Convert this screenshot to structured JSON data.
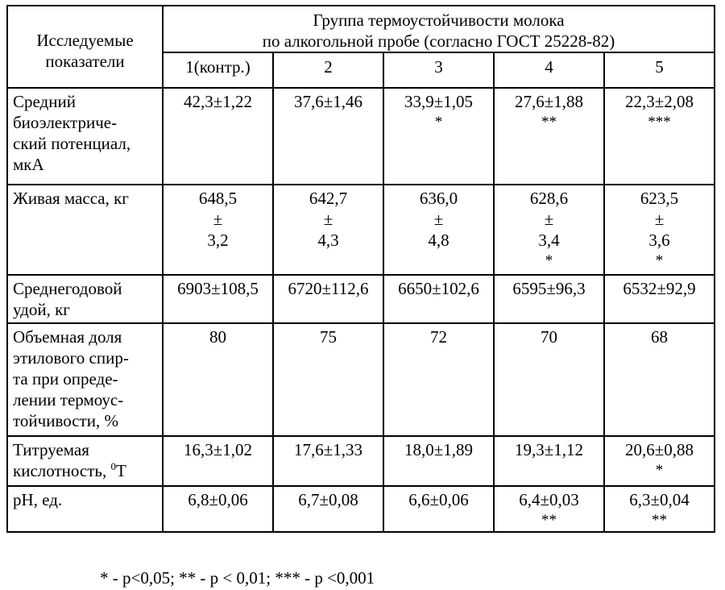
{
  "header": {
    "row_label": "Исследуемые показатели",
    "row_label_line1": "Исследуемые",
    "row_label_line2": "показатели",
    "group_title_line1": "Группа термоустойчивости молока",
    "group_title_line2": "по алкогольной пробе (согласно ГОСТ 25228-82)",
    "groups": [
      "1(контр.)",
      "2",
      "3",
      "4",
      "5"
    ]
  },
  "rows": [
    {
      "label_lines": [
        "Средний",
        "биоэлектриче-",
        "ский потенциал,",
        "мкА"
      ],
      "cells": [
        {
          "value": "42,3±1,22",
          "mark": ""
        },
        {
          "value": "37,6±1,46",
          "mark": ""
        },
        {
          "value": "33,9±1,05",
          "mark": "*"
        },
        {
          "value": "27,6±1,88",
          "mark": "**"
        },
        {
          "value": "22,3±2,08",
          "mark": "***"
        }
      ]
    },
    {
      "label_lines": [
        "Живая масса, кг"
      ],
      "cells": [
        {
          "value": "648,5",
          "pm": "±",
          "err": "3,2",
          "mark": ""
        },
        {
          "value": "642,7",
          "pm": "±",
          "err": "4,3",
          "mark": ""
        },
        {
          "value": "636,0",
          "pm": "±",
          "err": "4,8",
          "mark": ""
        },
        {
          "value": "628,6",
          "pm": "±",
          "err": "3,4",
          "mark": "*"
        },
        {
          "value": "623,5",
          "pm": "±",
          "err": "3,6",
          "mark": "*"
        }
      ]
    },
    {
      "label_lines": [
        "Среднегодовой",
        "удой, кг"
      ],
      "cells": [
        {
          "value": "6903±108,5",
          "mark": ""
        },
        {
          "value": "6720±112,6",
          "mark": ""
        },
        {
          "value": "6650±102,6",
          "mark": ""
        },
        {
          "value": "6595±96,3",
          "mark": ""
        },
        {
          "value": "6532±92,9",
          "mark": ""
        }
      ]
    },
    {
      "label_lines": [
        "Объемная доля",
        "этилового спир-",
        "та при опреде-",
        "лении термоус-",
        "тойчивости, %"
      ],
      "cells": [
        {
          "value": "80",
          "mark": ""
        },
        {
          "value": "75",
          "mark": ""
        },
        {
          "value": "72",
          "mark": ""
        },
        {
          "value": "70",
          "mark": ""
        },
        {
          "value": "68",
          "mark": ""
        }
      ]
    },
    {
      "label_lines": [
        "Титруемая",
        "кислотность, "
      ],
      "label_sup": "0",
      "label_tail": "Т",
      "cells": [
        {
          "value": "16,3±1,02",
          "mark": ""
        },
        {
          "value": "17,6±1,33",
          "mark": ""
        },
        {
          "value": "18,0±1,89",
          "mark": ""
        },
        {
          "value": "19,3±1,12",
          "mark": ""
        },
        {
          "value": "20,6±0,88",
          "mark": "*"
        }
      ]
    },
    {
      "label_lines": [
        "рН, ед."
      ],
      "cells": [
        {
          "value": "6,8±0,06",
          "mark": ""
        },
        {
          "value": "6,7±0,08",
          "mark": ""
        },
        {
          "value": "6,6±0,06",
          "mark": ""
        },
        {
          "value": "6,4±0,03",
          "mark": "**"
        },
        {
          "value": "6,3±0,04",
          "mark": "**"
        }
      ]
    }
  ],
  "footnote": "* - р<0,05; ** - р < 0,01; *** - р <0,001"
}
